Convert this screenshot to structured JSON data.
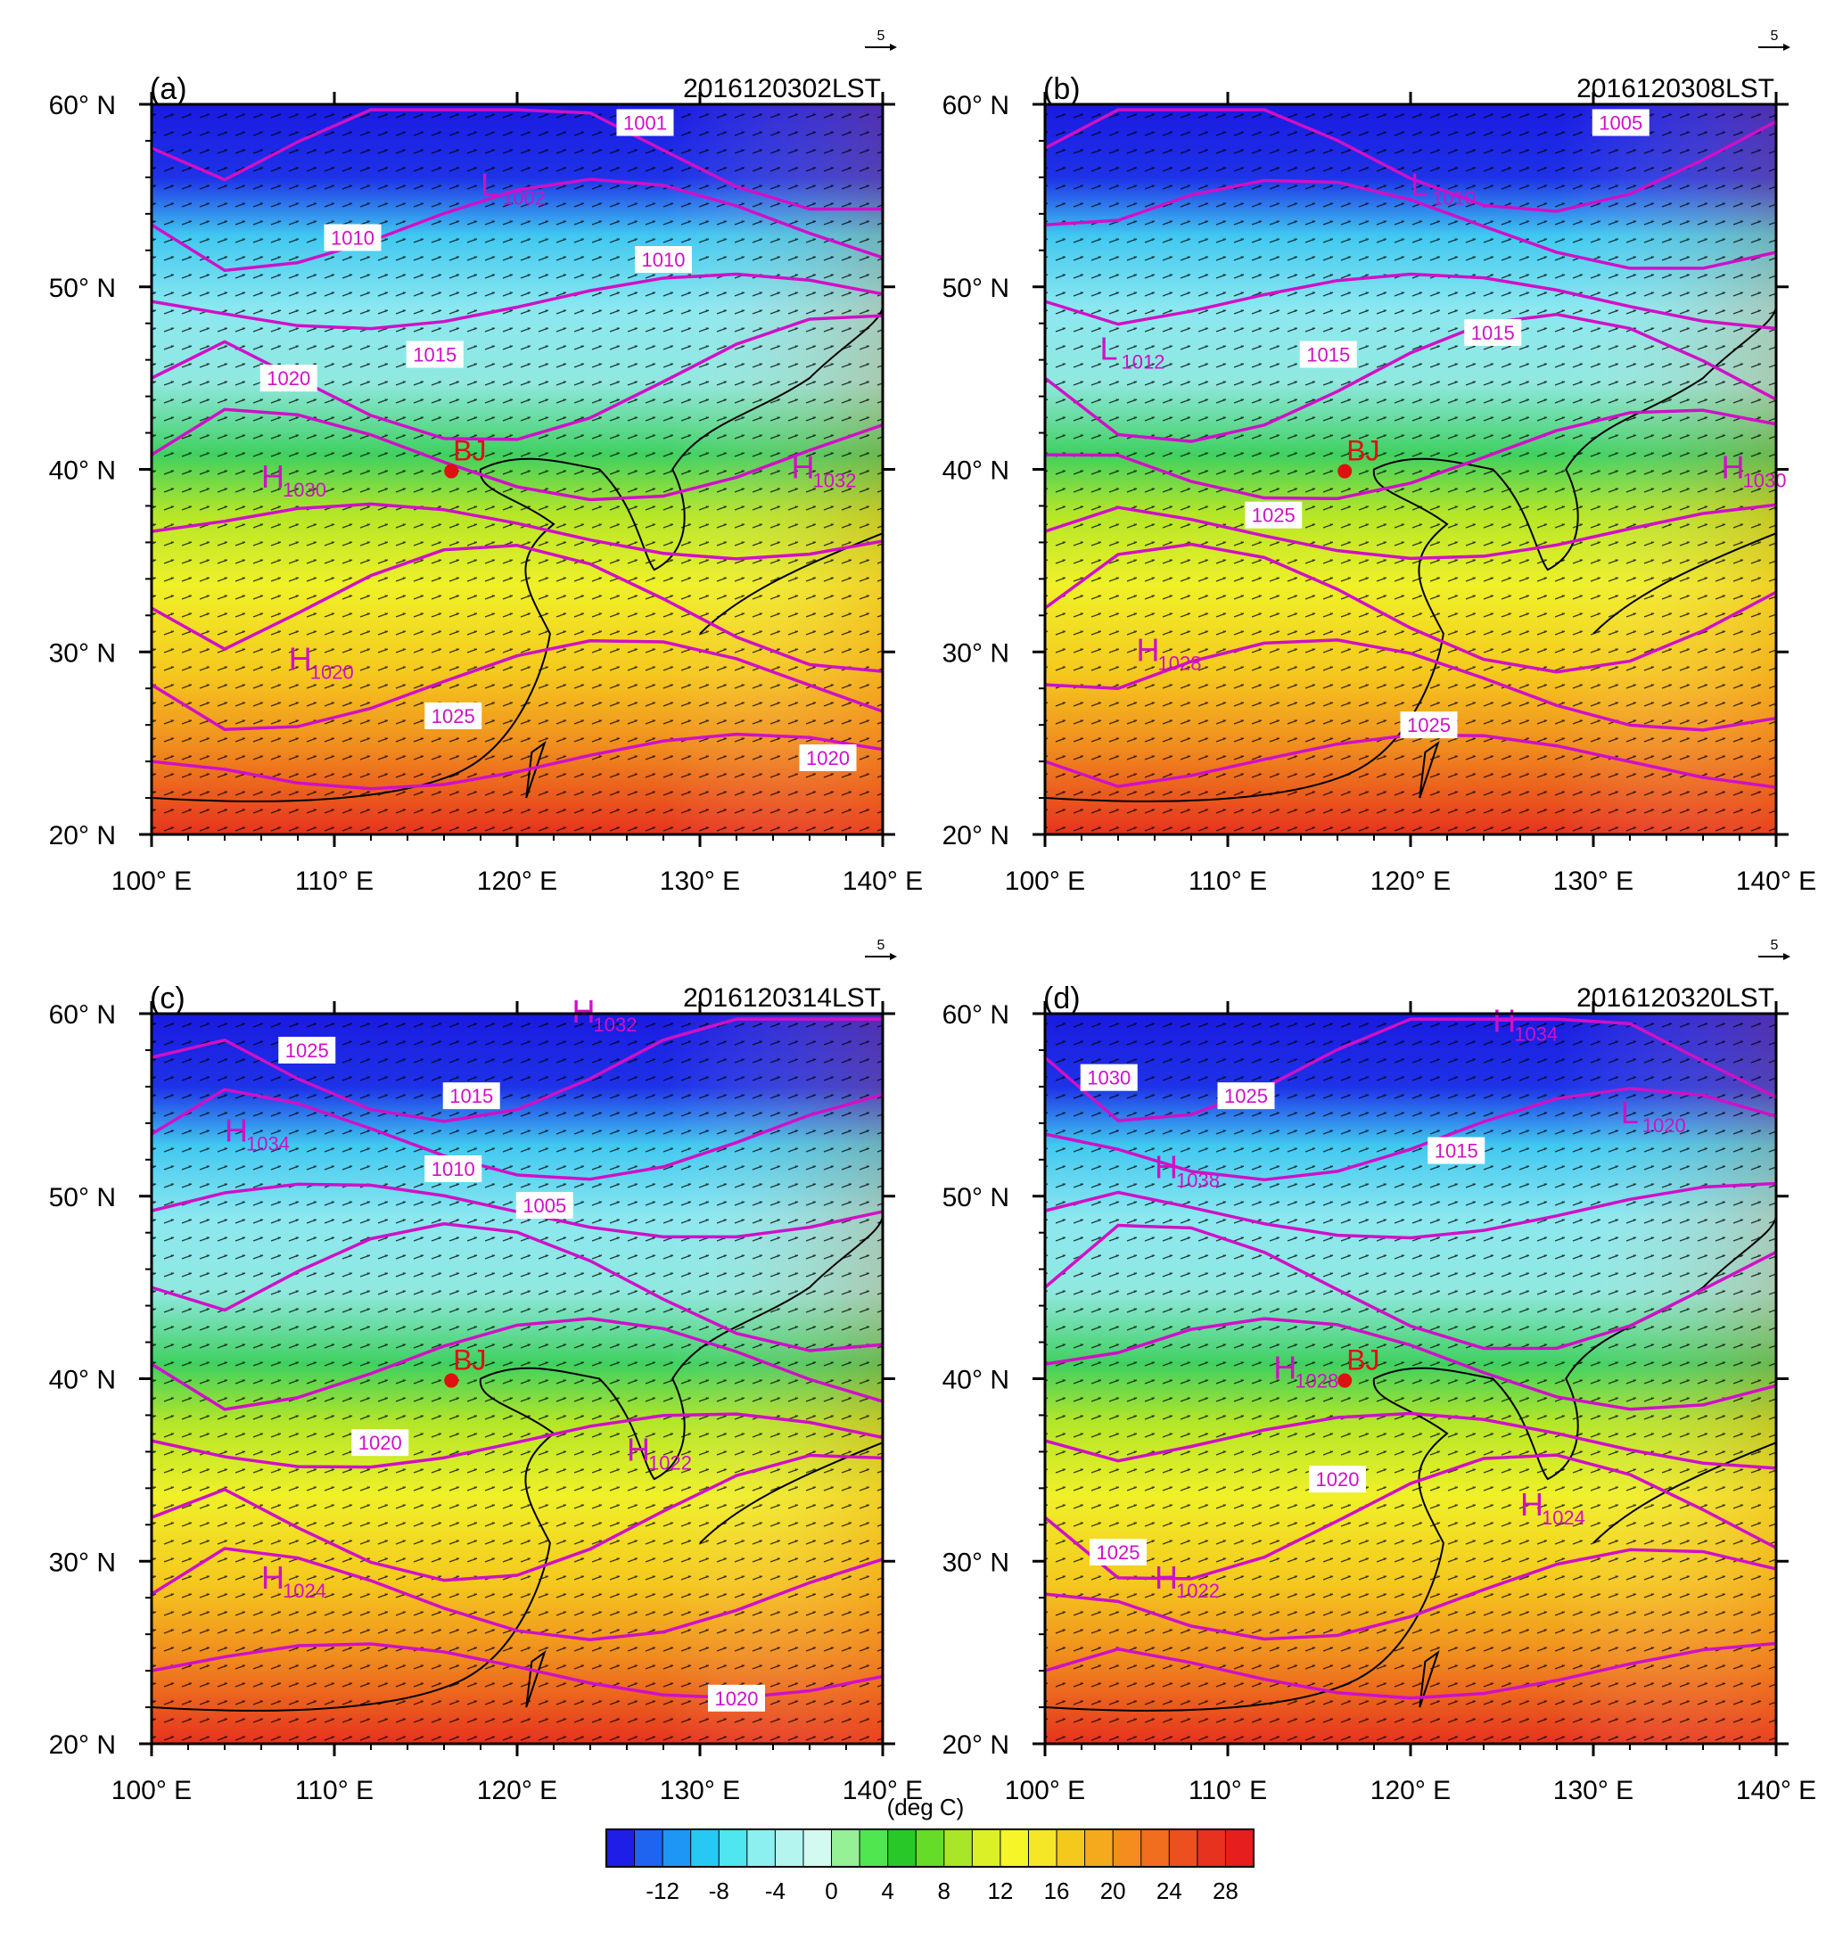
{
  "figure": {
    "colorbar": {
      "unit_label": "(deg C)",
      "ticks": [
        "-12",
        "-8",
        "-4",
        "0",
        "4",
        "8",
        "12",
        "16",
        "20",
        "24",
        "28"
      ],
      "colors": [
        "#1e1ee6",
        "#1e64f0",
        "#1e96f5",
        "#28c8f5",
        "#50e6f0",
        "#8cf0f0",
        "#b4f5f0",
        "#d2faf0",
        "#96f096",
        "#50e650",
        "#28c828",
        "#64dc28",
        "#aae628",
        "#dcf028",
        "#f5f528",
        "#f5e628",
        "#f5c81e",
        "#f5aa1e",
        "#f58c1e",
        "#f06e1e",
        "#eb501e",
        "#e6321e",
        "#e61e1e"
      ]
    },
    "reference_vector_label": "5",
    "panels": [
      {
        "id": "a",
        "label": "(a)",
        "time": "2016120302LST",
        "station": {
          "name": "BJ",
          "lon": 116.4,
          "lat": 39.9
        },
        "contour_labels": [
          {
            "text": "1001",
            "lon": 127.0,
            "lat": 59.0
          },
          {
            "text": "1010",
            "lon": 111.0,
            "lat": 52.7
          },
          {
            "text": "1010",
            "lon": 128.0,
            "lat": 51.5
          },
          {
            "text": "1015",
            "lon": 115.5,
            "lat": 46.3
          },
          {
            "text": "1020",
            "lon": 107.5,
            "lat": 45.0
          },
          {
            "text": "1025",
            "lon": 116.5,
            "lat": 26.5
          },
          {
            "text": "1020",
            "lon": 137.0,
            "lat": 24.2
          }
        ],
        "pressure_centers": [
          {
            "letter": "H",
            "value": "1030",
            "lon": 106.0,
            "lat": 39.0
          },
          {
            "letter": "H",
            "value": "1032",
            "lon": 135.0,
            "lat": 39.5
          },
          {
            "letter": "H",
            "value": "1020",
            "lon": 107.5,
            "lat": 29.0
          },
          {
            "letter": "L",
            "value": "1002",
            "lon": 118.0,
            "lat": 55.0
          }
        ]
      },
      {
        "id": "b",
        "label": "(b)",
        "time": "2016120308LST",
        "station": {
          "name": "BJ",
          "lon": 116.4,
          "lat": 39.9
        },
        "contour_labels": [
          {
            "text": "1005",
            "lon": 131.5,
            "lat": 59.0
          },
          {
            "text": "1015",
            "lon": 115.5,
            "lat": 46.3
          },
          {
            "text": "1015",
            "lon": 124.5,
            "lat": 47.5
          },
          {
            "text": "1025",
            "lon": 112.5,
            "lat": 37.5
          },
          {
            "text": "1025",
            "lon": 121.0,
            "lat": 26.0
          }
        ],
        "pressure_centers": [
          {
            "letter": "H",
            "value": "1030",
            "lon": 137.0,
            "lat": 39.5
          },
          {
            "letter": "H",
            "value": "1028",
            "lon": 105.0,
            "lat": 29.5
          },
          {
            "letter": "L",
            "value": "1010",
            "lon": 120.0,
            "lat": 55.0
          },
          {
            "letter": "L",
            "value": "1012",
            "lon": 103.0,
            "lat": 46.0
          }
        ]
      },
      {
        "id": "c",
        "label": "(c)",
        "time": "2016120314LST",
        "station": {
          "name": "BJ",
          "lon": 116.4,
          "lat": 39.9
        },
        "contour_labels": [
          {
            "text": "1025",
            "lon": 108.5,
            "lat": 58.0
          },
          {
            "text": "1015",
            "lon": 117.5,
            "lat": 55.5
          },
          {
            "text": "1010",
            "lon": 116.5,
            "lat": 51.5
          },
          {
            "text": "1005",
            "lon": 121.5,
            "lat": 49.5
          },
          {
            "text": "1020",
            "lon": 112.5,
            "lat": 36.5
          },
          {
            "text": "1020",
            "lon": 132.0,
            "lat": 22.5
          }
        ],
        "pressure_centers": [
          {
            "letter": "H",
            "value": "1032",
            "lon": 123.0,
            "lat": 59.5
          },
          {
            "letter": "H",
            "value": "1022",
            "lon": 126.0,
            "lat": 35.5
          },
          {
            "letter": "H",
            "value": "1024",
            "lon": 106.0,
            "lat": 28.5
          },
          {
            "letter": "H",
            "value": "1034",
            "lon": 104.0,
            "lat": 53.0
          }
        ]
      },
      {
        "id": "d",
        "label": "(d)",
        "time": "2016120320LST",
        "station": {
          "name": "BJ",
          "lon": 116.4,
          "lat": 39.9
        },
        "contour_labels": [
          {
            "text": "1030",
            "lon": 103.5,
            "lat": 56.5
          },
          {
            "text": "1025",
            "lon": 111.0,
            "lat": 55.5
          },
          {
            "text": "1015",
            "lon": 122.5,
            "lat": 52.5
          },
          {
            "text": "1020",
            "lon": 116.0,
            "lat": 34.5
          },
          {
            "text": "1025",
            "lon": 104.0,
            "lat": 30.5
          }
        ],
        "pressure_centers": [
          {
            "letter": "H",
            "value": "1034",
            "lon": 124.5,
            "lat": 59.0
          },
          {
            "letter": "H",
            "value": "1038",
            "lon": 106.0,
            "lat": 51.0
          },
          {
            "letter": "H",
            "value": "1024",
            "lon": 126.0,
            "lat": 32.5
          },
          {
            "letter": "H",
            "value": "1022",
            "lon": 106.0,
            "lat": 28.5
          },
          {
            "letter": "H",
            "value": "1028",
            "lon": 112.5,
            "lat": 40.0
          },
          {
            "letter": "L",
            "value": "1020",
            "lon": 131.5,
            "lat": 54.0
          }
        ]
      }
    ],
    "axes": {
      "lon_ticks": [
        "100° E",
        "110° E",
        "120° E",
        "130° E",
        "140° E"
      ],
      "lat_ticks": [
        "20° N",
        "30° N",
        "40° N",
        "50° N",
        "60° N"
      ]
    }
  }
}
